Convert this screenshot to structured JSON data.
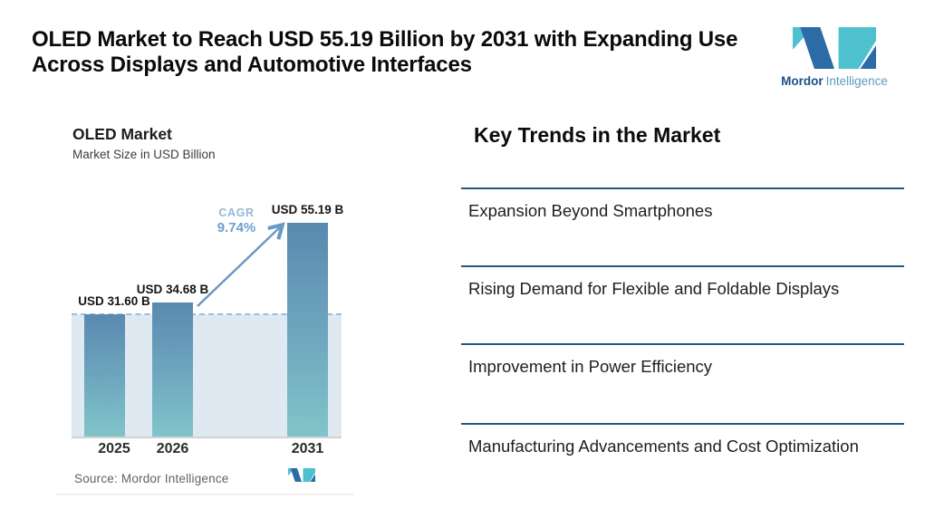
{
  "page": {
    "title": "OLED Market to Reach USD 55.19 Billion by 2031 with Expanding Use Across Displays and Automotive Interfaces"
  },
  "brand": {
    "name_bold": "Mordor",
    "name_light": "Intelligence",
    "color_dark_blue": "#2b6ba6",
    "color_teal": "#4fc0ce"
  },
  "chart_card": {
    "title": "OLED Market",
    "subtitle": "Market Size in USD Billion",
    "cagr_label": "CAGR",
    "cagr_value": "9.74%",
    "source": "Source: Mordor Intelligence"
  },
  "chart_data": {
    "type": "bar",
    "title": "OLED Market",
    "subtitle": "Market Size in USD Billion",
    "unit": "USD Billion",
    "categories": [
      "2025",
      "2026",
      "2031"
    ],
    "values": [
      31.6,
      34.68,
      55.19
    ],
    "value_labels": [
      "USD 31.60 B",
      "USD 34.68 B",
      "USD 55.19 B"
    ],
    "cagr_percent": 9.74,
    "baseline_dashed_at": 31.6,
    "ylim": [
      0,
      60
    ],
    "grid": false,
    "bar_color_top": "#5a89b0",
    "bar_color_bottom": "#80c5c9",
    "shaded_band_color": "#dfe9f1",
    "dashed_line_color": "#9dbcd8",
    "arrow_color": "#6898c6"
  },
  "trends": {
    "heading": "Key Trends in the Market",
    "items": [
      "Expansion Beyond Smartphones",
      "Rising Demand for Flexible and Foldable Displays",
      "Improvement in Power Efficiency",
      "Manufacturing Advancements and Cost Optimization"
    ],
    "divider_color": "#215d80"
  }
}
